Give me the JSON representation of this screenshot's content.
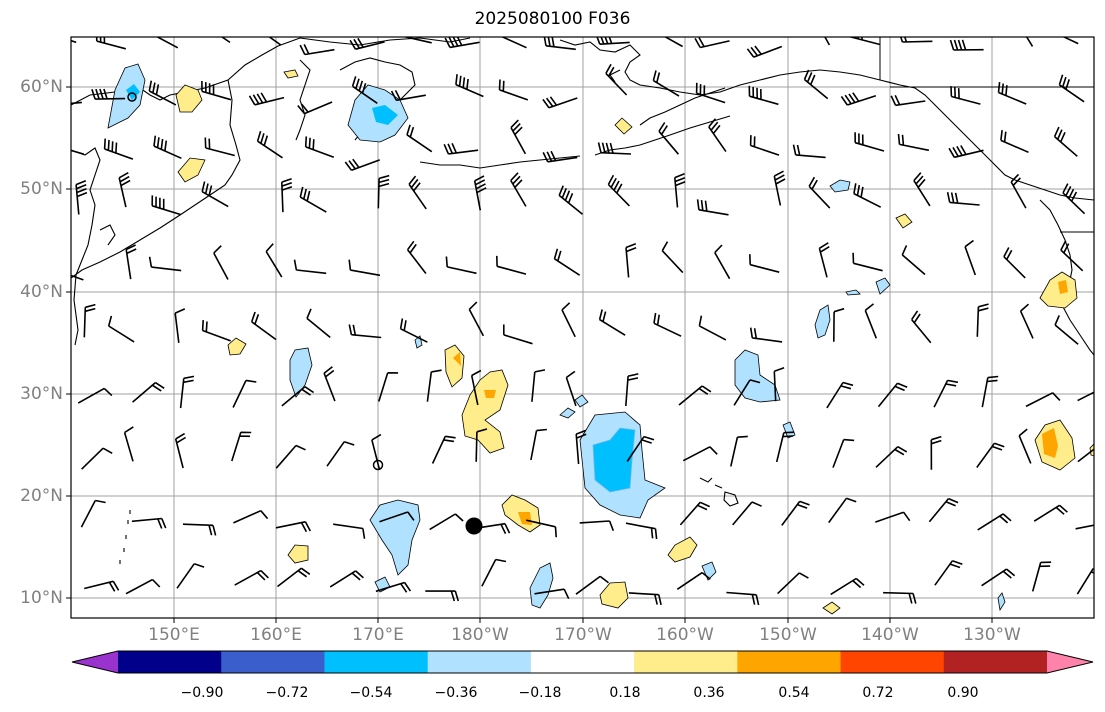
{
  "title": "2025080100 F036",
  "lat_labels": [
    "60°N",
    "50°N",
    "40°N",
    "30°N",
    "20°N",
    "10°N"
  ],
  "lon_labels": [
    "150°E",
    "160°E",
    "170°E",
    "180°W",
    "170°W",
    "160°W",
    "150°W",
    "140°W",
    "130°W"
  ],
  "colorbar": {
    "levels": [
      "−0.90",
      "−0.72",
      "−0.54",
      "−0.36",
      "−0.18",
      "0.18",
      "0.36",
      "0.54",
      "0.72",
      "0.90"
    ],
    "colors": [
      "#9a32cd",
      "#00008b",
      "#3a5fcd",
      "#00bfff",
      "#b0e2ff",
      "#ffffff",
      "#ffec8b",
      "#ffa500",
      "#ff4500",
      "#b22222",
      "#ff82ab"
    ]
  },
  "icons": {
    "wind_barbs": "wind-barb-icon",
    "station": "station-circle-icon",
    "storm": "storm-center-icon"
  }
}
